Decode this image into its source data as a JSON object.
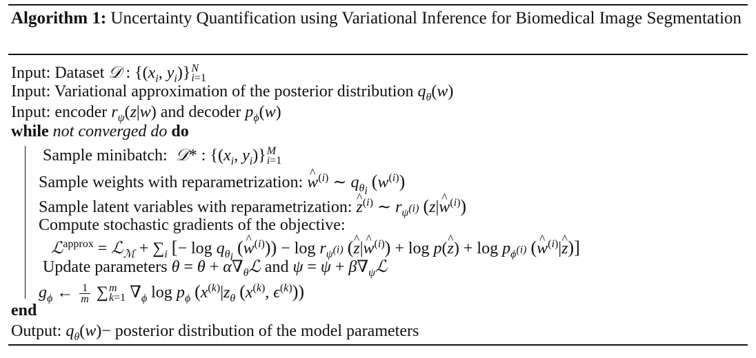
{
  "title": {
    "label": "Algorithm 1:",
    "text": "Uncertainty Quantification using Variational Inference for Biomedical Image Segmentation"
  },
  "inputs": [
    {
      "prefix": "Input:",
      "text": "Dataset"
    },
    {
      "prefix": "Input:",
      "text": "Variational approximation of the posterior distribution"
    },
    {
      "prefix": "Input:",
      "text": "encoder",
      "text2": "and decoder"
    }
  ],
  "loop": {
    "keyword": "while",
    "condition": "not converged do",
    "do": "do",
    "end": "end"
  },
  "steps": {
    "sample_minibatch": "Sample minibatch:",
    "sample_weights": "Sample weights with reparametrization:",
    "sample_latent": "Sample latent variables with reparametrization:",
    "compute_gradients": "Compute stochastic gradients of the objective:",
    "update": "Update parameters",
    "update_and": "and"
  },
  "output": {
    "prefix": "Output:",
    "text": "posterior distribution of the model parameters"
  },
  "math": {
    "approx_label": "approx"
  }
}
